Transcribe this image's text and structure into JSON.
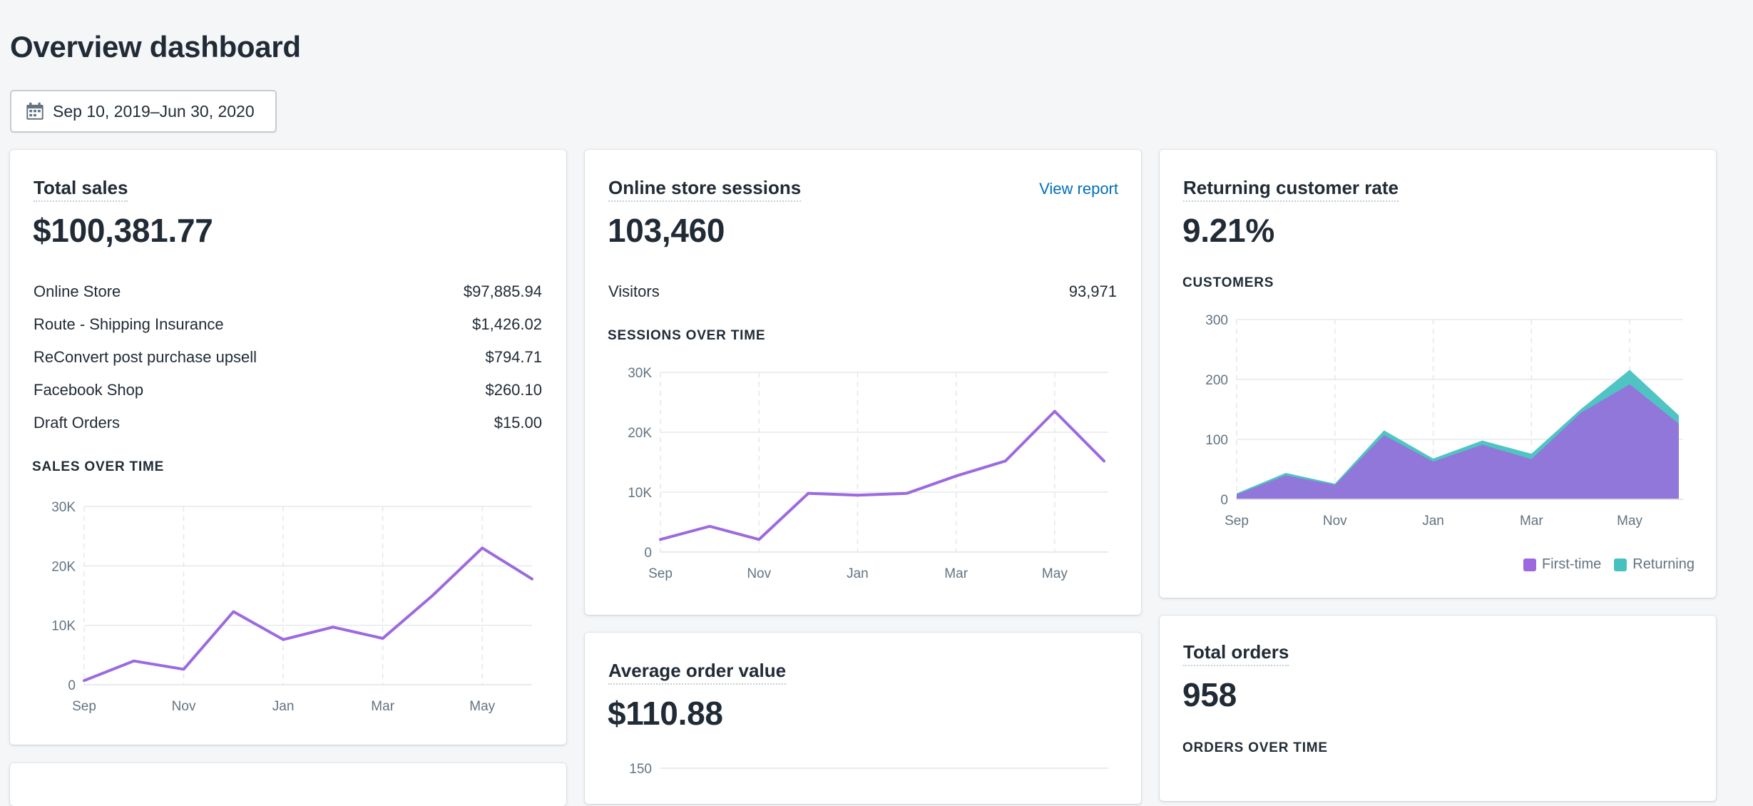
{
  "page": {
    "title": "Overview dashboard"
  },
  "date_range": {
    "label": "Sep 10, 2019–Jun 30, 2020"
  },
  "colors": {
    "accent": "#9c6ade",
    "secondary": "#47c1bf",
    "link": "#006fbb"
  },
  "total_sales": {
    "title": "Total sales",
    "value": "$100,381.77",
    "breakdown": [
      {
        "label": "Online Store",
        "value": "$97,885.94"
      },
      {
        "label": "Route - Shipping Insurance",
        "value": "$1,426.02"
      },
      {
        "label": "ReConvert post purchase upsell",
        "value": "$794.71"
      },
      {
        "label": "Facebook Shop",
        "value": "$260.10"
      },
      {
        "label": "Draft Orders",
        "value": "$15.00"
      }
    ],
    "chart_label": "SALES OVER TIME"
  },
  "sessions": {
    "title": "Online store sessions",
    "link": "View report",
    "value": "103,460",
    "visitors_label": "Visitors",
    "visitors_value": "93,971",
    "chart_label": "SESSIONS OVER TIME"
  },
  "returning": {
    "title": "Returning customer rate",
    "value": "9.21%",
    "chart_label": "CUSTOMERS",
    "legend": [
      "First-time",
      "Returning"
    ]
  },
  "aov": {
    "title": "Average order value",
    "value": "$110.88"
  },
  "total_orders": {
    "title": "Total orders",
    "value": "958",
    "chart_label": "ORDERS OVER TIME"
  },
  "chart_data": [
    {
      "type": "line",
      "x": [
        "Sep",
        "Oct",
        "Nov",
        "Dec",
        "Jan",
        "Feb",
        "Mar",
        "Apr",
        "May",
        "Jun"
      ],
      "xticks": [
        "Sep",
        "Nov",
        "Jan",
        "Mar",
        "May"
      ],
      "yticks": [
        "0",
        "10K",
        "20K",
        "30K"
      ],
      "ylim": [
        0,
        30000
      ],
      "series": [
        {
          "values": [
            700,
            4000,
            2600,
            12300,
            7600,
            9700,
            7800,
            15000,
            23000,
            17800
          ]
        }
      ]
    },
    {
      "type": "line",
      "x": [
        "Sep",
        "Oct",
        "Nov",
        "Dec",
        "Jan",
        "Feb",
        "Mar",
        "Apr",
        "May",
        "Jun"
      ],
      "xticks": [
        "Sep",
        "Nov",
        "Jan",
        "Mar",
        "May"
      ],
      "yticks": [
        "0",
        "10K",
        "20K",
        "30K"
      ],
      "ylim": [
        0,
        30000
      ],
      "series": [
        {
          "values": [
            2100,
            4300,
            2100,
            9800,
            9500,
            9800,
            12700,
            15200,
            23500,
            15200
          ]
        }
      ]
    },
    {
      "type": "area",
      "x": [
        "Sep",
        "Oct",
        "Nov",
        "Dec",
        "Jan",
        "Feb",
        "Mar",
        "Apr",
        "May",
        "Jun"
      ],
      "xticks": [
        "Sep",
        "Nov",
        "Jan",
        "Mar",
        "May"
      ],
      "yticks": [
        "0",
        "100",
        "200",
        "300"
      ],
      "ylim": [
        0,
        300
      ],
      "legend_position": "bottom-right",
      "series": [
        {
          "name": "First-time",
          "values": [
            8,
            40,
            24,
            107,
            63,
            91,
            67,
            144,
            192,
            126
          ]
        },
        {
          "name": "Returning",
          "values": [
            2,
            4,
            2,
            8,
            5,
            7,
            9,
            6,
            24,
            14
          ]
        }
      ]
    },
    {
      "type": "line",
      "yticks": [
        "150"
      ]
    }
  ]
}
